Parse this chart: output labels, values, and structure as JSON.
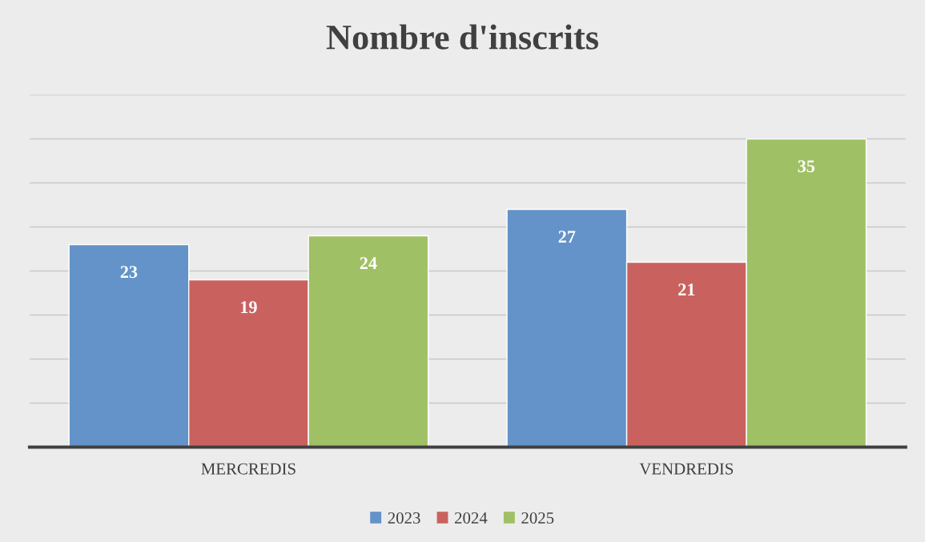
{
  "chart_data": {
    "type": "bar",
    "title": "Nombre d'inscrits",
    "categories": [
      "MERCREDIS",
      "VENDREDIS"
    ],
    "series": [
      {
        "name": "2023",
        "color": "#6393c9",
        "values": [
          23,
          27
        ]
      },
      {
        "name": "2024",
        "color": "#c9625f",
        "values": [
          19,
          21
        ]
      },
      {
        "name": "2025",
        "color": "#a0c066",
        "values": [
          24,
          35
        ]
      }
    ],
    "ylim": [
      0,
      40
    ],
    "yticks": [
      {
        "value": 0,
        "label": null
      },
      {
        "value": 5,
        "label": null
      },
      {
        "value": 10,
        "label": null
      },
      {
        "value": 15,
        "label": null
      },
      {
        "value": 20,
        "label": null
      },
      {
        "value": 25,
        "label": null
      },
      {
        "value": 30,
        "label": null
      },
      {
        "value": 35,
        "label": null
      },
      {
        "value": 40,
        "label": null
      }
    ],
    "grid": "y",
    "legend": "bottom",
    "data_labels": true,
    "tick_labels": "x"
  }
}
